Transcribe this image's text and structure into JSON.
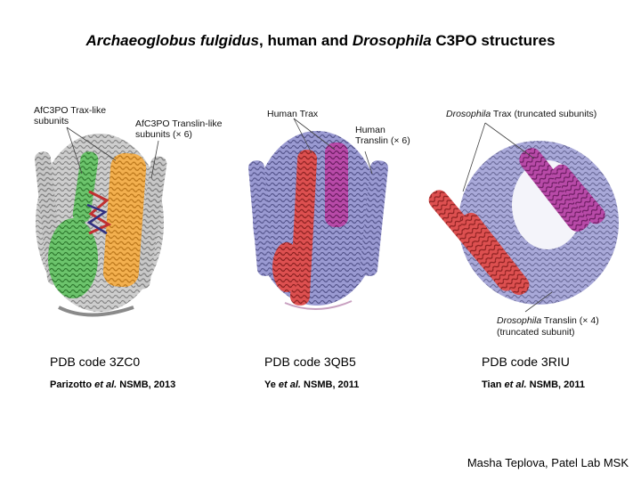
{
  "title": {
    "part1_italic": "Archaeoglobus fulgidus",
    "part2": ", human and ",
    "part3_italic": "Drosophila",
    "part4": " C3PO structures"
  },
  "panels": [
    {
      "labels": {
        "trax": "AfC3PO Trax-like subunits",
        "translin": "AfC3PO Translin-like subunits (× 6)"
      },
      "pdb": "PDB code 3ZC0",
      "cite_author": "Parizotto",
      "cite_etal": "et al.",
      "cite_rest": " NSMB, 2013",
      "colors": {
        "trax": "#5cb85c",
        "translin": "#f0a840",
        "other": "#b0b0b0",
        "rna_red": "#c03030",
        "rna_blue": "#303080"
      }
    },
    {
      "labels": {
        "trax": "Human Trax",
        "translin": "Human Translin (× 6)"
      },
      "pdb": "PDB code 3QB5",
      "cite_author": "Ye",
      "cite_etal": "et al.",
      "cite_rest": " NSMB, 2011",
      "colors": {
        "trax_red": "#d94848",
        "trax_magenta": "#b040a0",
        "translin": "#8c8cc8"
      }
    },
    {
      "labels": {
        "trax_italic": "Drosophila",
        "trax_rest": " Trax (truncated subunits)",
        "translin_italic": "Drosophila",
        "translin_rest": " Translin (× 4)",
        "translin_note": "(truncated subunit)"
      },
      "pdb": "PDB code 3RIU",
      "cite_author": "Tian",
      "cite_etal": "et al.",
      "cite_rest": " NSMB, 2011",
      "colors": {
        "trax_red": "#d94848",
        "trax_magenta": "#b040a0",
        "translin": "#9a9ad0"
      }
    }
  ],
  "credit": "Masha Teplova, Patel Lab MSK"
}
